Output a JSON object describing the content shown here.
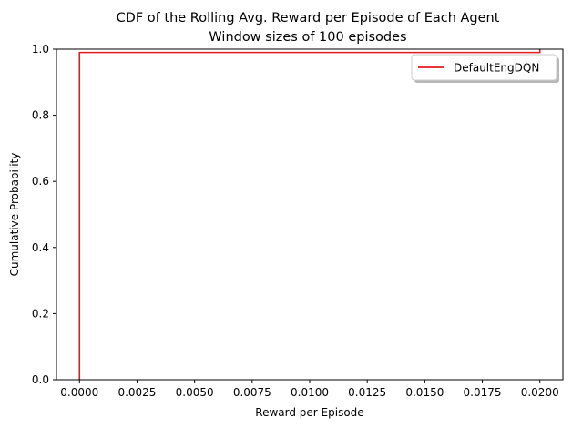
{
  "chart_data": {
    "type": "line",
    "title": "CDF of the Rolling Avg. Reward per Episode of Each Agent",
    "subtitle": "Window sizes of 100 episodes",
    "xlabel": "Reward per Episode",
    "ylabel": "Cumulative Probability",
    "xlim": [
      -0.001,
      0.021
    ],
    "ylim": [
      0,
      1.0
    ],
    "xticks": [
      0.0,
      0.0025,
      0.005,
      0.0075,
      0.01,
      0.0125,
      0.015,
      0.0175,
      0.02
    ],
    "xtick_labels": [
      "0.0000",
      "0.0025",
      "0.0050",
      "0.0075",
      "0.0100",
      "0.0125",
      "0.0150",
      "0.0175",
      "0.0200"
    ],
    "yticks": [
      0.0,
      0.2,
      0.4,
      0.6,
      0.8,
      1.0
    ],
    "ytick_labels": [
      "0.0",
      "0.2",
      "0.4",
      "0.6",
      "0.8",
      "1.0"
    ],
    "grid": false,
    "legend_position": "top-right",
    "series": [
      {
        "name": "DefaultEngDQN",
        "color": "#e41a1c",
        "step": true,
        "x": [
          0.0,
          0.0,
          0.01,
          0.02,
          0.02
        ],
        "y": [
          0.0,
          0.99,
          0.99,
          0.99,
          1.0
        ]
      }
    ]
  }
}
